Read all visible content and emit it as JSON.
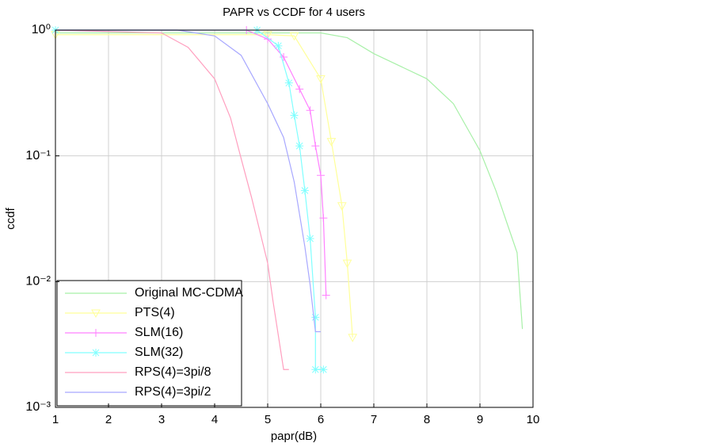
{
  "chart_data": {
    "type": "line",
    "title": "PAPR vs CCDF for 4 users",
    "x_label": "papr(dB)",
    "y_label": "ccdf",
    "y_scale": "log",
    "grid": true,
    "legend_position": "lower left",
    "xlim": [
      1,
      10
    ],
    "xticks": [
      1,
      2,
      3,
      4,
      5,
      6,
      7,
      8,
      9,
      10
    ],
    "ylim": [
      0.001,
      1
    ],
    "yticks": [
      {
        "value": 0.001,
        "label": "10⁻³"
      },
      {
        "value": 0.01,
        "label": "10⁻²"
      },
      {
        "value": 0.1,
        "label": "10⁻¹"
      },
      {
        "value": 1,
        "label": "10⁰"
      }
    ],
    "series": [
      {
        "name": "Original MC-CDMA",
        "color": "#a8f0a8",
        "marker": "none",
        "x": [
          1,
          6,
          6.5,
          7,
          8,
          8.5,
          9,
          9.3,
          9.5,
          9.7,
          9.8
        ],
        "values": [
          0.95,
          0.95,
          0.87,
          0.65,
          0.41,
          0.26,
          0.11,
          0.053,
          0.03,
          0.017,
          0.0042
        ]
      },
      {
        "name": "PTS(4)",
        "color": "#ffff99",
        "marker": "v",
        "x": [
          1,
          5,
          5.5,
          6,
          6.2,
          6.4,
          6.5,
          6.6
        ],
        "values": [
          0.92,
          0.92,
          0.9,
          0.41,
          0.13,
          0.04,
          0.014,
          0.0036
        ]
      },
      {
        "name": "SLM(16)",
        "color": "#ff80ff",
        "marker": "+",
        "x": [
          1,
          4.6,
          5,
          5.3,
          5.6,
          5.8,
          5.9,
          6,
          6.05,
          6.1
        ],
        "values": [
          1,
          1,
          0.85,
          0.61,
          0.34,
          0.23,
          0.12,
          0.07,
          0.032,
          0.0078
        ]
      },
      {
        "name": "SLM(32)",
        "color": "#80ffff",
        "marker": "*",
        "x": [
          1,
          4.8,
          5.2,
          5.4,
          5.5,
          5.6,
          5.7,
          5.8,
          5.9,
          5.9,
          6.05
        ],
        "values": [
          1,
          1,
          0.75,
          0.38,
          0.21,
          0.12,
          0.053,
          0.022,
          0.0052,
          0.002,
          0.002
        ]
      },
      {
        "name": "RPS(4)=3pi/8",
        "color": "#ff9fbf",
        "marker": "none",
        "x": [
          1,
          3,
          3.5,
          4,
          4.3,
          4.5,
          4.7,
          5,
          5.1,
          5.3,
          5.4
        ],
        "values": [
          1,
          0.95,
          0.73,
          0.41,
          0.2,
          0.095,
          0.046,
          0.014,
          0.007,
          0.002,
          0.002
        ]
      },
      {
        "name": "RPS(4)=3pi/2",
        "color": "#a8a8ff",
        "marker": "none",
        "x": [
          1,
          3.3,
          4,
          4.5,
          5,
          5.3,
          5.5,
          5.7,
          5.8,
          5.9,
          6
        ],
        "values": [
          1,
          1,
          0.9,
          0.63,
          0.26,
          0.14,
          0.062,
          0.019,
          0.0094,
          0.004,
          0.004
        ]
      }
    ]
  }
}
